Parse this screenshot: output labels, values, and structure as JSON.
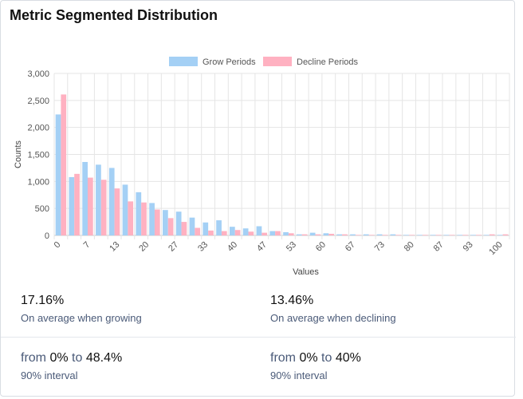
{
  "title": "Metric Segmented Distribution",
  "colors": {
    "grow": "#a4d0f5",
    "decline": "#ffb1c1",
    "grid": "#e5e5e5",
    "axis": "#c8c8c8",
    "text": "#555555"
  },
  "chart_data": {
    "type": "bar",
    "xlabel": "Values",
    "ylabel": "Counts",
    "ylim": [
      0,
      3000
    ],
    "yticks": [
      "0",
      "500",
      "1,000",
      "1,500",
      "2,000",
      "2,500",
      "3,000"
    ],
    "ytick_values": [
      0,
      500,
      1000,
      1500,
      2000,
      2500,
      3000
    ],
    "xtick_labels": [
      "0",
      "7",
      "13",
      "20",
      "27",
      "33",
      "40",
      "47",
      "53",
      "60",
      "67",
      "73",
      "80",
      "87",
      "93",
      "100"
    ],
    "legend_position": "top",
    "grid": true,
    "series": [
      {
        "name": "Grow Periods",
        "values": [
          2240,
          1080,
          1360,
          1310,
          1250,
          940,
          800,
          600,
          470,
          440,
          330,
          240,
          280,
          160,
          130,
          170,
          80,
          60,
          20,
          50,
          40,
          20,
          20,
          20,
          20,
          20,
          10,
          10,
          10,
          10,
          10,
          10,
          10,
          10
        ]
      },
      {
        "name": "Decline Periods",
        "values": [
          2610,
          1140,
          1070,
          1030,
          870,
          630,
          610,
          480,
          320,
          250,
          140,
          90,
          80,
          100,
          70,
          50,
          80,
          40,
          20,
          20,
          30,
          20,
          10,
          10,
          10,
          10,
          10,
          10,
          10,
          10,
          10,
          10,
          20,
          20
        ]
      }
    ]
  },
  "stats": {
    "grow_avg": "17.16%",
    "grow_avg_caption": "On average when growing",
    "decline_avg": "13.46%",
    "decline_avg_caption": "On average when declining",
    "grow_interval": {
      "from_word": "from",
      "low": "0%",
      "to_word": "to",
      "high": "48.4%",
      "caption": "90% interval"
    },
    "decline_interval": {
      "from_word": "from",
      "low": "0%",
      "to_word": "to",
      "high": "40%",
      "caption": "90% interval"
    }
  }
}
